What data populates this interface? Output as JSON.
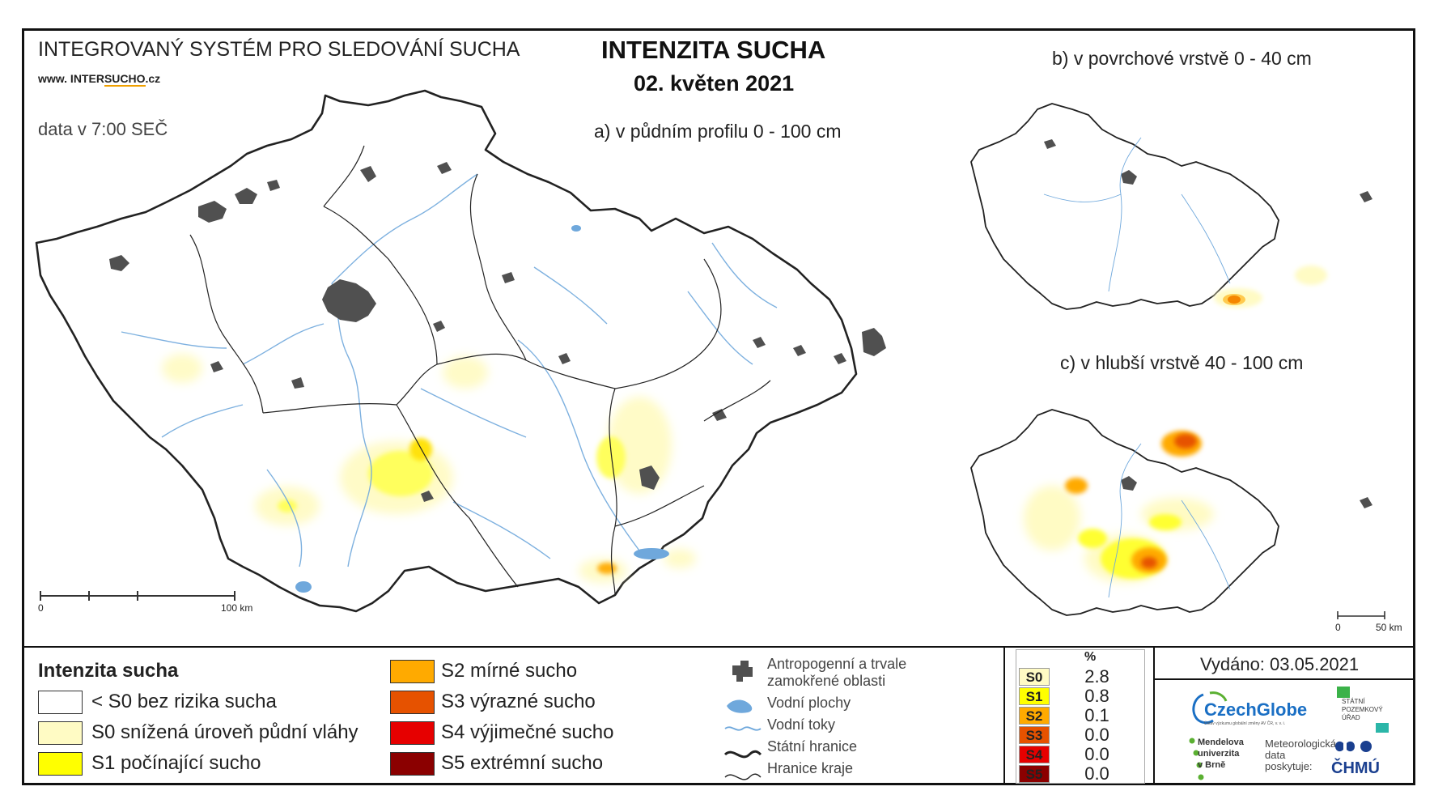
{
  "header": {
    "system_title": "INTEGROVANÝ SYSTÉM PRO SLEDOVÁNÍ SUCHA",
    "website_prefix": "www. INTER",
    "website_mid": "SUCHO",
    "website_suffix": ".cz",
    "data_time": "data v 7:00 SEČ",
    "main_title": "INTENZITA SUCHA",
    "date": "02. květen 2021"
  },
  "maps": {
    "a_label": "a) v půdním profilu 0 - 100 cm",
    "b_label": "b) v povrchové vrstvě 0 - 40 cm",
    "c_label": "c) v hlubší vrstvě 40 - 100 cm",
    "scale_a": {
      "start": "0",
      "end": "100 km"
    },
    "scale_c": {
      "start": "0",
      "end": "50 km"
    }
  },
  "legend": {
    "title": "Intenzita sucha",
    "classes": [
      {
        "label": "< S0 bez rizika sucha",
        "color": "#ffffff"
      },
      {
        "label": "S0 snížená úroveň půdní vláhy",
        "color": "#fffbc4"
      },
      {
        "label": "S1 počínající sucho",
        "color": "#ffff00"
      },
      {
        "label": "S2 mírné sucho",
        "color": "#ffaa00"
      },
      {
        "label": "S3 výrazné sucho",
        "color": "#e65200"
      },
      {
        "label": "S4 výjimečné sucho",
        "color": "#e60000"
      },
      {
        "label": "S5 extrémní sucho",
        "color": "#8b0000"
      }
    ]
  },
  "symbols": {
    "anthropogenic": "Antropogenní a trvale zamokřené oblasti",
    "water_areas": "Vodní plochy",
    "water_flows": "Vodní toky",
    "state_border": "Státní hranice",
    "region_border": "Hranice kraje"
  },
  "stats": {
    "header": "%",
    "rows": [
      {
        "code": "S0",
        "value": "2.8",
        "color": "#fffbc4"
      },
      {
        "code": "S1",
        "value": "0.8",
        "color": "#ffff00"
      },
      {
        "code": "S2",
        "value": "0.1",
        "color": "#ffaa00"
      },
      {
        "code": "S3",
        "value": "0.0",
        "color": "#e65200"
      },
      {
        "code": "S4",
        "value": "0.0",
        "color": "#e60000"
      },
      {
        "code": "S5",
        "value": "0.0",
        "color": "#8b0000"
      }
    ]
  },
  "footer": {
    "issued": "Vydáno: 03.05.2021",
    "czechglobe": "CzechGlobe",
    "czechglobe_sub": "Ústav výzkumu globální změny AV ČR, v. v. i.",
    "spu": [
      "STÁTNÍ",
      "POZEMKOVÝ",
      "ÚŘAD"
    ],
    "mendel": [
      "Mendelova",
      "univerzita",
      "v Brně"
    ],
    "meteo": [
      "Meteorologická",
      "data",
      "poskytuje:"
    ],
    "chmu": "ČHMÚ"
  },
  "colors": {
    "water": "#6fa8dc",
    "urban": "#505050",
    "border": "#222222"
  }
}
